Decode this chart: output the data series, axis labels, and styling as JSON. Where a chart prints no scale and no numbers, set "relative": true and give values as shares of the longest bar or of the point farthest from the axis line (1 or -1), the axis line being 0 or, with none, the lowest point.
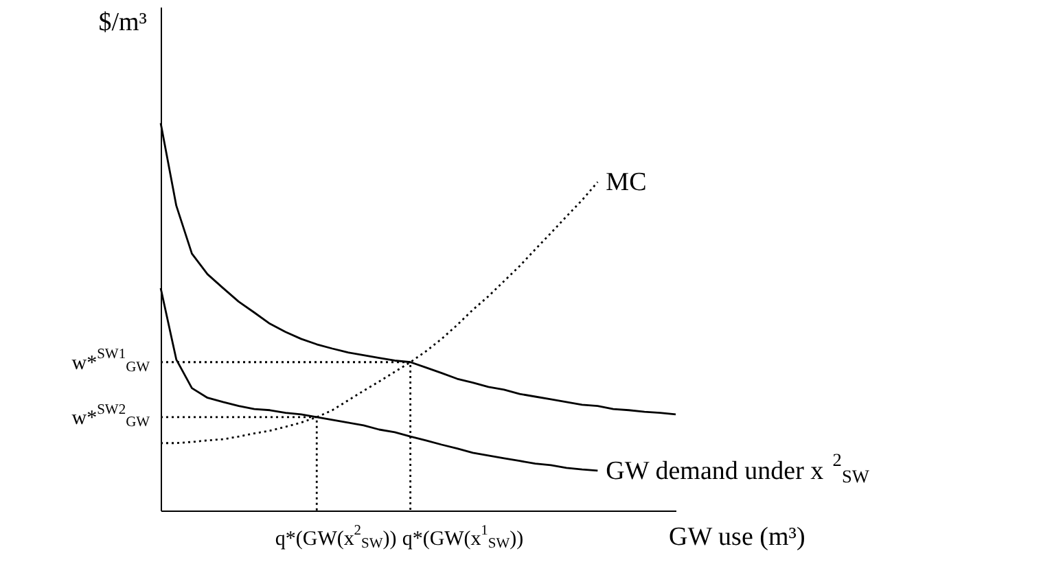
{
  "chart_data": {
    "type": "line",
    "relative": true,
    "xlabel": "GW use (m³)",
    "ylabel": "$/m³",
    "marker": "none",
    "categories": [
      null,
      null,
      null,
      null,
      null,
      null,
      null,
      null,
      null,
      null,
      null,
      null,
      null,
      null,
      null,
      null,
      null,
      null,
      null,
      null,
      null,
      null,
      null,
      null,
      null,
      null,
      null,
      null,
      null,
      null,
      null,
      null,
      null,
      null
    ],
    "series": [
      {
        "color": "#000000",
        "line_style": "solid",
        "values": [
          1.0,
          0.787,
          0.663,
          0.61,
          0.574,
          0.539,
          0.511,
          0.482,
          0.461,
          0.443,
          0.429,
          0.418,
          0.408,
          0.401,
          0.394,
          0.387,
          0.383,
          0.369,
          0.355,
          0.34,
          0.33,
          0.319,
          0.312,
          0.301,
          0.294,
          0.287,
          0.28,
          0.273,
          0.27,
          0.262,
          0.259,
          0.255,
          0.252,
          0.248
        ]
      },
      {
        "name": "GW demand under x$^{2}$$_{SW}$",
        "color": "#000000",
        "line_style": "solid",
        "values": [
          0.574,
          0.39,
          0.316,
          0.291,
          0.28,
          0.27,
          0.262,
          0.259,
          0.252,
          0.248,
          0.241,
          0.234,
          0.227,
          0.22,
          0.209,
          0.202,
          0.191,
          0.181,
          0.17,
          0.16,
          0.149,
          0.142,
          0.135,
          0.128,
          0.121,
          0.117,
          0.11,
          0.106,
          0.103,
          null,
          null,
          null,
          null,
          null
        ]
      },
      {
        "name": "MC",
        "color": "#000000",
        "line_style": "dotted",
        "values": [
          0.174,
          0.174,
          0.177,
          0.181,
          0.184,
          0.191,
          0.199,
          0.206,
          0.216,
          0.227,
          0.241,
          0.259,
          0.284,
          0.309,
          0.333,
          0.358,
          0.383,
          0.411,
          0.443,
          0.479,
          0.518,
          0.553,
          0.592,
          0.631,
          0.674,
          0.716,
          0.759,
          0.801,
          0.848,
          null,
          null,
          null,
          null,
          null
        ]
      }
    ],
    "ref_lines": [
      {
        "axis": "y",
        "value": 0.241,
        "label": "w*$^{SW2}$$_{GW}$",
        "color": "#000000",
        "line_style": "dotted"
      },
      {
        "axis": "y",
        "value": 0.383,
        "label": "w*$^{SW1}$$_{GW}$",
        "color": "#000000",
        "line_style": "dotted"
      }
    ],
    "annotations": [
      "q*(GW(x$^{2}$$_{SW}$))",
      "q*(GW(x$^{1}$$_{SW}$))"
    ]
  }
}
